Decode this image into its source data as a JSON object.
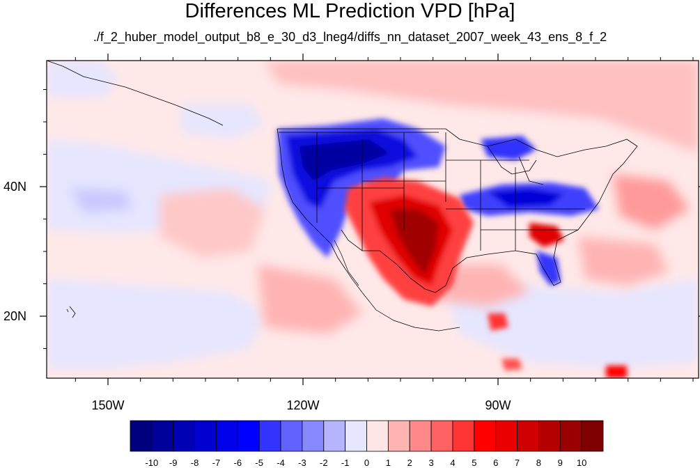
{
  "title": "Differences ML Prediction VPD [hPa]",
  "subtitle": "./f_2_huber_model_output_b8_e_30_d3_lneg4/diffs_nn_dataset_2007_week_43_ens_8_f_2",
  "lon_ticks": [
    {
      "value": -150,
      "label": "150W"
    },
    {
      "value": -120,
      "label": "120W"
    },
    {
      "value": -90,
      "label": "90W"
    }
  ],
  "lat_ticks": [
    {
      "value": 40,
      "label": "40N"
    },
    {
      "value": 20,
      "label": "20N"
    }
  ],
  "colorbar": {
    "colors": [
      "#00007f",
      "#00009a",
      "#0000b5",
      "#0000d0",
      "#0000ea",
      "#0000ff",
      "#3434ff",
      "#6262ff",
      "#8989ff",
      "#b4b4ff",
      "#e6e6ff",
      "#ffe6e6",
      "#ffb4b4",
      "#ff8989",
      "#ff6262",
      "#ff3434",
      "#ff0000",
      "#ea0000",
      "#d00000",
      "#b50000",
      "#9a0000",
      "#7f0000"
    ],
    "labels": [
      "-10",
      "-9",
      "-8",
      "-7",
      "-6",
      "-5",
      "-4",
      "-3",
      "-2",
      "-1",
      "0",
      "1",
      "2",
      "3",
      "4",
      "5",
      "6",
      "7",
      "8",
      "9",
      "10"
    ]
  }
}
